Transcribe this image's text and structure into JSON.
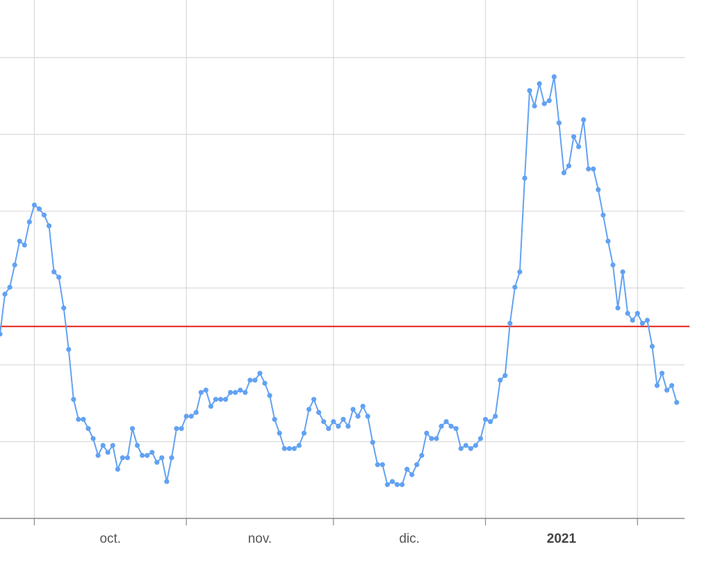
{
  "chart_data": {
    "type": "line",
    "x": [
      -7,
      -6,
      -5,
      -4,
      -3,
      -2,
      -1,
      0,
      1,
      2,
      3,
      4,
      5,
      6,
      7,
      8,
      9,
      10,
      11,
      12,
      13,
      14,
      15,
      16,
      17,
      18,
      19,
      20,
      21,
      22,
      23,
      24,
      25,
      26,
      27,
      28,
      29,
      30,
      31,
      32,
      33,
      34,
      35,
      36,
      37,
      38,
      39,
      40,
      41,
      42,
      43,
      44,
      45,
      46,
      47,
      48,
      49,
      50,
      51,
      52,
      53,
      54,
      55,
      56,
      57,
      58,
      59,
      60,
      61,
      62,
      63,
      64,
      65,
      66,
      67,
      68,
      69,
      70,
      71,
      72,
      73,
      74,
      75,
      76,
      77,
      78,
      79,
      80,
      81,
      82,
      83,
      84,
      85,
      86,
      87,
      88,
      89,
      90,
      91,
      92,
      93,
      94,
      95,
      96,
      97,
      98,
      99,
      100,
      101,
      102,
      103,
      104,
      105,
      106,
      107,
      108,
      109,
      110,
      111,
      112,
      113,
      114,
      115,
      116,
      117,
      118,
      119,
      120,
      121,
      122,
      123,
      124,
      125,
      126,
      127,
      128,
      129,
      130,
      131
    ],
    "series": [
      {
        "color": "#62a2f2",
        "values": [
          2.4,
          2.92,
          3.01,
          3.3,
          3.61,
          3.56,
          3.86,
          4.08,
          4.03,
          3.95,
          3.81,
          3.21,
          3.14,
          2.74,
          2.2,
          1.55,
          1.29,
          1.29,
          1.17,
          1.04,
          0.82,
          0.95,
          0.86,
          0.95,
          0.64,
          0.79,
          0.79,
          1.17,
          0.95,
          0.82,
          0.82,
          0.86,
          0.73,
          0.79,
          0.48,
          0.79,
          1.17,
          1.17,
          1.33,
          1.33,
          1.38,
          1.64,
          1.67,
          1.46,
          1.55,
          1.55,
          1.55,
          1.64,
          1.64,
          1.67,
          1.64,
          1.8,
          1.8,
          1.89,
          1.76,
          1.6,
          1.29,
          1.11,
          0.91,
          0.91,
          0.91,
          0.95,
          1.11,
          1.42,
          1.55,
          1.38,
          1.26,
          1.17,
          1.26,
          1.2,
          1.29,
          1.2,
          1.42,
          1.33,
          1.46,
          1.33,
          0.99,
          0.7,
          0.7,
          0.44,
          0.48,
          0.44,
          0.44,
          0.64,
          0.57,
          0.7,
          0.82,
          1.11,
          1.04,
          1.04,
          1.2,
          1.26,
          1.2,
          1.17,
          0.91,
          0.95,
          0.91,
          0.95,
          1.04,
          1.29,
          1.26,
          1.33,
          1.8,
          1.86,
          2.54,
          3.01,
          3.21,
          4.43,
          5.57,
          5.37,
          5.66,
          5.4,
          5.44,
          5.75,
          5.15,
          4.5,
          4.59,
          4.97,
          4.84,
          5.19,
          4.55,
          4.55,
          4.28,
          3.95,
          3.61,
          3.3,
          2.74,
          3.21,
          2.67,
          2.58,
          2.67,
          2.54,
          2.58,
          2.24,
          1.73,
          1.89,
          1.67,
          1.73,
          1.51
        ]
      }
    ],
    "xlim": [
      -7,
      132.6
    ],
    "ylim": [
      0,
      6.75
    ],
    "ygrid": [
      1,
      2,
      3,
      4,
      5,
      6
    ],
    "xgrid": [
      0,
      31,
      61,
      92,
      123
    ],
    "xticks": [
      {
        "value": 15.5,
        "label": "oct."
      },
      {
        "value": 46,
        "label": "nov."
      },
      {
        "value": 76.5,
        "label": "dic."
      },
      {
        "value": 107.5,
        "label": "2021"
      }
    ],
    "bold_tick": 3,
    "reference_line": {
      "value": 2.5,
      "color": "#e0201b"
    }
  }
}
